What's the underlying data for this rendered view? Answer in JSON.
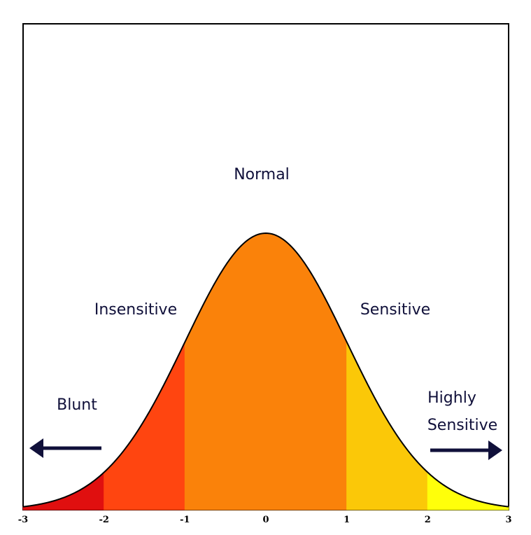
{
  "chart_data": {
    "type": "area",
    "title": "",
    "xlabel": "",
    "ylabel": "",
    "xlim": [
      -3,
      3
    ],
    "x_ticks": [
      "-3",
      "-2",
      "-1",
      "0",
      "1",
      "2",
      "3"
    ],
    "curve": "normal-distribution",
    "mean": 0,
    "std": 1,
    "regions": [
      {
        "from": -3,
        "to": -2,
        "color": "#e00f0f"
      },
      {
        "from": -2,
        "to": -1,
        "color": "#ff4510"
      },
      {
        "from": -1,
        "to": 1,
        "color": "#fa820a"
      },
      {
        "from": 1,
        "to": 2,
        "color": "#fbc808"
      },
      {
        "from": 2,
        "to": 3,
        "color": "#ffff0a"
      }
    ],
    "annotations": {
      "normal": "Normal",
      "insensitive": "Insensitive",
      "sensitive": "Sensitive",
      "blunt": "Blunt",
      "highly_sensitive_line1": "Highly",
      "highly_sensitive_line2": "Sensitive"
    },
    "arrows": [
      {
        "name": "blunt-arrow",
        "direction": "left"
      },
      {
        "name": "highly-sensitive-arrow",
        "direction": "right"
      }
    ],
    "colors": {
      "arrow": "#10103a",
      "curve": "#000000",
      "frame": "#000000"
    },
    "grid": false
  }
}
